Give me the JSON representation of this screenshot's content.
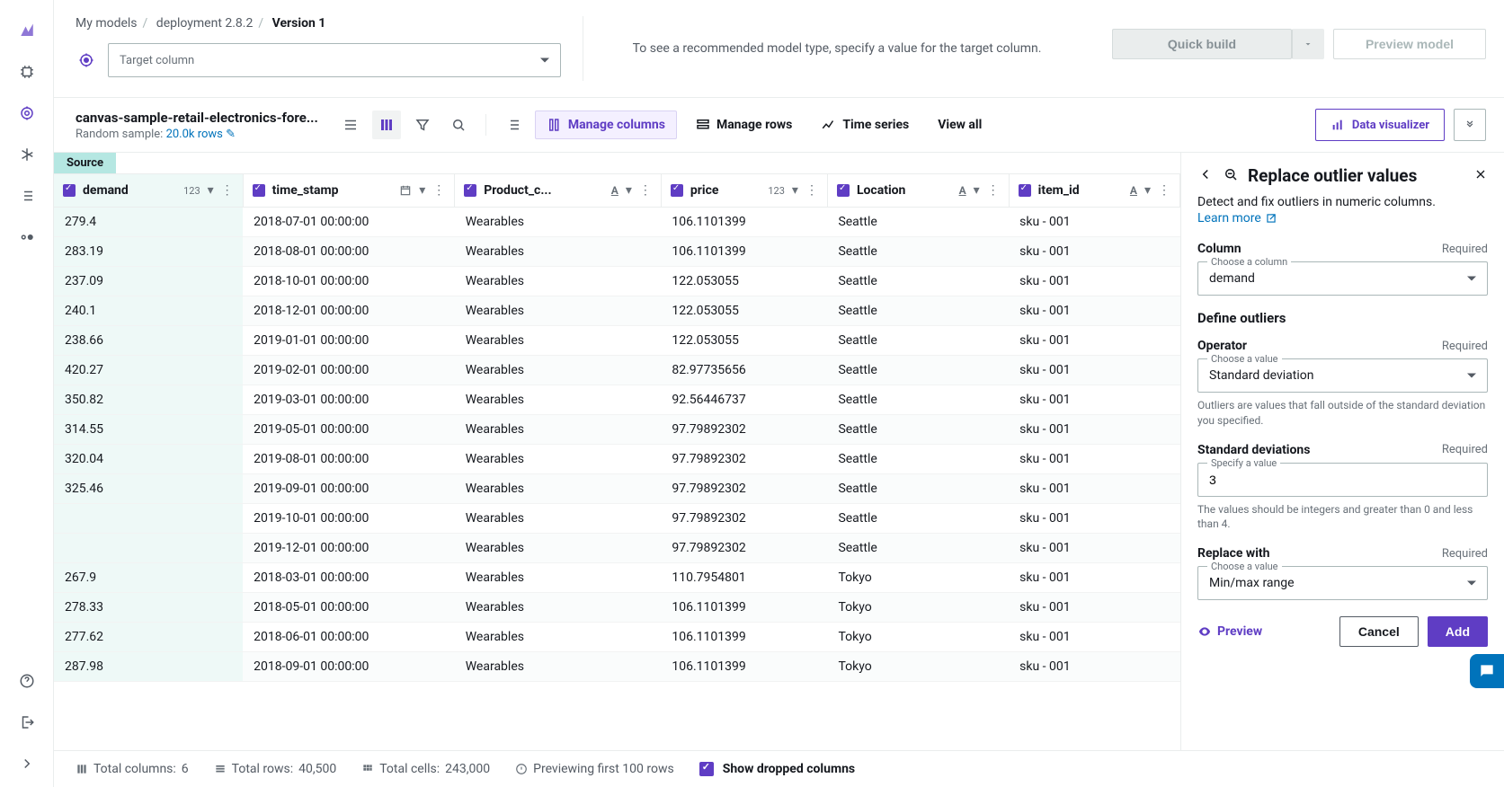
{
  "breadcrumb": {
    "l1": "My models",
    "l2": "deployment 2.8.2",
    "current": "Version 1"
  },
  "target": {
    "placeholder": "Target column",
    "hint": "To see a recommended model type, specify a value for the target column."
  },
  "buttons": {
    "quick_build": "Quick build",
    "preview_model": "Preview model",
    "data_visualizer": "Data visualizer"
  },
  "dataset": {
    "name": "canvas-sample-retail-electronics-fore...",
    "sample_label": "Random sample:",
    "sample_value": "20.0k rows"
  },
  "toolbar": {
    "manage_columns": "Manage columns",
    "manage_rows": "Manage rows",
    "time_series": "Time series",
    "view_all": "View all"
  },
  "source_tag": "Source",
  "columns": [
    {
      "name": "demand",
      "type": "123"
    },
    {
      "name": "time_stamp",
      "type": "date"
    },
    {
      "name": "Product_c...",
      "type": "A"
    },
    {
      "name": "price",
      "type": "123"
    },
    {
      "name": "Location",
      "type": "A"
    },
    {
      "name": "item_id",
      "type": "A"
    }
  ],
  "rows": [
    [
      "279.4",
      "2018-07-01 00:00:00",
      "Wearables",
      "106.1101399",
      "Seattle",
      "sku - 001"
    ],
    [
      "283.19",
      "2018-08-01 00:00:00",
      "Wearables",
      "106.1101399",
      "Seattle",
      "sku - 001"
    ],
    [
      "237.09",
      "2018-10-01 00:00:00",
      "Wearables",
      "122.053055",
      "Seattle",
      "sku - 001"
    ],
    [
      "240.1",
      "2018-12-01 00:00:00",
      "Wearables",
      "122.053055",
      "Seattle",
      "sku - 001"
    ],
    [
      "238.66",
      "2019-01-01 00:00:00",
      "Wearables",
      "122.053055",
      "Seattle",
      "sku - 001"
    ],
    [
      "420.27",
      "2019-02-01 00:00:00",
      "Wearables",
      "82.97735656",
      "Seattle",
      "sku - 001"
    ],
    [
      "350.82",
      "2019-03-01 00:00:00",
      "Wearables",
      "92.56446737",
      "Seattle",
      "sku - 001"
    ],
    [
      "314.55",
      "2019-05-01 00:00:00",
      "Wearables",
      "97.79892302",
      "Seattle",
      "sku - 001"
    ],
    [
      "320.04",
      "2019-08-01 00:00:00",
      "Wearables",
      "97.79892302",
      "Seattle",
      "sku - 001"
    ],
    [
      "325.46",
      "2019-09-01 00:00:00",
      "Wearables",
      "97.79892302",
      "Seattle",
      "sku - 001"
    ],
    [
      "",
      "2019-10-01 00:00:00",
      "Wearables",
      "97.79892302",
      "Seattle",
      "sku - 001"
    ],
    [
      "",
      "2019-12-01 00:00:00",
      "Wearables",
      "97.79892302",
      "Seattle",
      "sku - 001"
    ],
    [
      "267.9",
      "2018-03-01 00:00:00",
      "Wearables",
      "110.7954801",
      "Tokyo",
      "sku - 001"
    ],
    [
      "278.33",
      "2018-05-01 00:00:00",
      "Wearables",
      "106.1101399",
      "Tokyo",
      "sku - 001"
    ],
    [
      "277.62",
      "2018-06-01 00:00:00",
      "Wearables",
      "106.1101399",
      "Tokyo",
      "sku - 001"
    ],
    [
      "287.98",
      "2018-09-01 00:00:00",
      "Wearables",
      "106.1101399",
      "Tokyo",
      "sku - 001"
    ]
  ],
  "panel": {
    "title": "Replace outlier values",
    "desc": "Detect and fix outliers in numeric columns.",
    "learn_more": "Learn more",
    "column": {
      "label": "Column",
      "required": "Required",
      "legend": "Choose a column",
      "value": "demand"
    },
    "define": "Define outliers",
    "operator": {
      "label": "Operator",
      "required": "Required",
      "legend": "Choose a value",
      "value": "Standard deviation",
      "help": "Outliers are values that fall outside of the standard deviation you specified."
    },
    "stddev": {
      "label": "Standard deviations",
      "required": "Required",
      "legend": "Specify a value",
      "value": "3",
      "help": "The values should be integers and greater than 0 and less than 4."
    },
    "replace": {
      "label": "Replace with",
      "required": "Required",
      "legend": "Choose a value",
      "value": "Min/max range"
    },
    "preview": "Preview",
    "cancel": "Cancel",
    "add": "Add"
  },
  "footer": {
    "total_columns_label": "Total columns:",
    "total_columns": "6",
    "total_rows_label": "Total rows:",
    "total_rows": "40,500",
    "total_cells_label": "Total cells:",
    "total_cells": "243,000",
    "preview_label": "Previewing first 100 rows",
    "show_dropped": "Show dropped columns"
  },
  "colors": {
    "accent": "#5f3dc4",
    "link": "#0073bb",
    "teal": "#b5e7e2"
  }
}
